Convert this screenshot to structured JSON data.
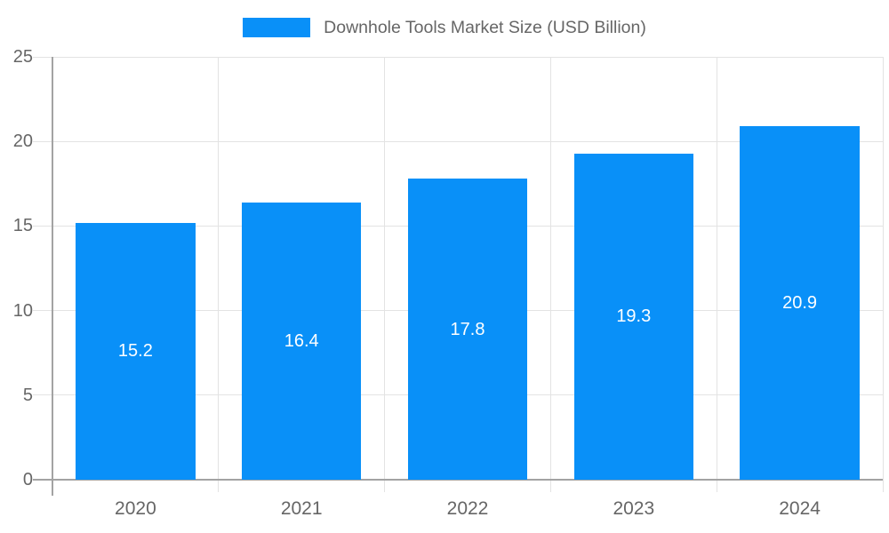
{
  "legend": {
    "label": "Downhole Tools Market Size (USD Billion)"
  },
  "chart_data": {
    "type": "bar",
    "title": "Downhole Tools Market Size (USD Billion)",
    "categories": [
      "2020",
      "2021",
      "2022",
      "2023",
      "2024"
    ],
    "values": [
      15.2,
      16.4,
      17.8,
      19.3,
      20.9
    ],
    "value_labels": [
      "15.2",
      "16.4",
      "17.8",
      "19.3",
      "20.9"
    ],
    "series": [
      {
        "name": "Downhole Tools Market Size (USD Billion)",
        "values": [
          15.2,
          16.4,
          17.8,
          19.3,
          20.9
        ]
      }
    ],
    "xlabel": "",
    "ylabel": "",
    "ylim": [
      0,
      25
    ],
    "ytick_step": 5,
    "ytick_labels": [
      "0",
      "5",
      "10",
      "15",
      "20",
      "25"
    ],
    "grid": true,
    "legend_position": "top",
    "value_label_position": "center"
  },
  "colors": {
    "bar": "#0990F8",
    "grid": "#e3e3e3",
    "axis": "#a3a3a3",
    "tick_text": "#666666",
    "legend_text": "#666666",
    "value_label": "#ffffff",
    "background": "#ffffff"
  }
}
